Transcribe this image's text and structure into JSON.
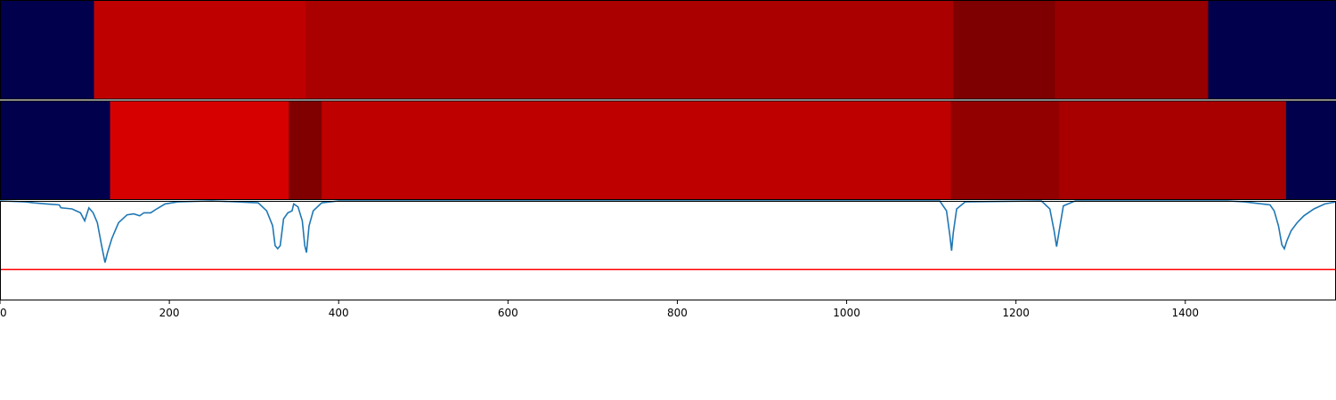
{
  "chart_data": {
    "type": "heatmap",
    "xlim": [
      0,
      1578
    ],
    "x_ticks": [
      0,
      200,
      400,
      600,
      800,
      1000,
      1200,
      1400
    ],
    "x_tick_labels": [
      "0",
      "200",
      "400",
      "600",
      "800",
      "1000",
      "1200",
      "1400"
    ],
    "rows": [
      {
        "segments": [
          {
            "start": 0,
            "end": 111,
            "color": "#00004c"
          },
          {
            "start": 111,
            "end": 361,
            "color": "#bf0000"
          },
          {
            "start": 361,
            "end": 1126,
            "color": "#aa0000"
          },
          {
            "start": 1126,
            "end": 1246,
            "color": "#7e0000"
          },
          {
            "start": 1246,
            "end": 1427,
            "color": "#960000"
          },
          {
            "start": 1427,
            "end": 1578,
            "color": "#00004c"
          }
        ]
      },
      {
        "segments": [
          {
            "start": 0,
            "end": 130,
            "color": "#00004c"
          },
          {
            "start": 130,
            "end": 341,
            "color": "#d70000"
          },
          {
            "start": 341,
            "end": 380,
            "color": "#800000"
          },
          {
            "start": 380,
            "end": 1123,
            "color": "#bf0000"
          },
          {
            "start": 1123,
            "end": 1251,
            "color": "#930000"
          },
          {
            "start": 1251,
            "end": 1519,
            "color": "#a80000"
          },
          {
            "start": 1519,
            "end": 1578,
            "color": "#00004c"
          }
        ]
      }
    ],
    "line": {
      "color": "#1f77b4",
      "ylim": [
        0,
        1
      ],
      "points": [
        [
          0,
          1.0
        ],
        [
          30,
          0.99
        ],
        [
          40,
          0.98
        ],
        [
          55,
          0.97
        ],
        [
          70,
          0.96
        ],
        [
          72,
          0.93
        ],
        [
          85,
          0.92
        ],
        [
          95,
          0.88
        ],
        [
          100,
          0.8
        ],
        [
          105,
          0.93
        ],
        [
          110,
          0.88
        ],
        [
          115,
          0.78
        ],
        [
          120,
          0.55
        ],
        [
          124,
          0.38
        ],
        [
          127,
          0.48
        ],
        [
          132,
          0.62
        ],
        [
          135,
          0.68
        ],
        [
          140,
          0.78
        ],
        [
          145,
          0.82
        ],
        [
          150,
          0.86
        ],
        [
          158,
          0.87
        ],
        [
          165,
          0.85
        ],
        [
          170,
          0.88
        ],
        [
          178,
          0.88
        ],
        [
          185,
          0.92
        ],
        [
          195,
          0.97
        ],
        [
          210,
          0.99
        ],
        [
          250,
          1.0
        ],
        [
          280,
          0.99
        ],
        [
          305,
          0.98
        ],
        [
          315,
          0.9
        ],
        [
          322,
          0.75
        ],
        [
          325,
          0.55
        ],
        [
          328,
          0.52
        ],
        [
          331,
          0.55
        ],
        [
          335,
          0.82
        ],
        [
          340,
          0.88
        ],
        [
          345,
          0.9
        ],
        [
          347,
          0.97
        ],
        [
          352,
          0.94
        ],
        [
          357,
          0.8
        ],
        [
          360,
          0.55
        ],
        [
          362,
          0.48
        ],
        [
          365,
          0.75
        ],
        [
          370,
          0.9
        ],
        [
          380,
          0.98
        ],
        [
          400,
          1.0
        ],
        [
          800,
          1.0
        ],
        [
          1110,
          1.0
        ],
        [
          1118,
          0.9
        ],
        [
          1122,
          0.65
        ],
        [
          1124,
          0.5
        ],
        [
          1126,
          0.68
        ],
        [
          1130,
          0.92
        ],
        [
          1140,
          0.99
        ],
        [
          1230,
          1.0
        ],
        [
          1240,
          0.92
        ],
        [
          1245,
          0.7
        ],
        [
          1248,
          0.54
        ],
        [
          1251,
          0.7
        ],
        [
          1256,
          0.95
        ],
        [
          1270,
          1.0
        ],
        [
          1450,
          1.0
        ],
        [
          1470,
          0.99
        ],
        [
          1500,
          0.96
        ],
        [
          1505,
          0.9
        ],
        [
          1510,
          0.75
        ],
        [
          1514,
          0.56
        ],
        [
          1517,
          0.52
        ],
        [
          1520,
          0.6
        ],
        [
          1525,
          0.7
        ],
        [
          1532,
          0.78
        ],
        [
          1540,
          0.85
        ],
        [
          1552,
          0.92
        ],
        [
          1565,
          0.97
        ],
        [
          1578,
          0.99
        ]
      ]
    },
    "threshold": {
      "value": 0.31,
      "color": "#ff0000"
    }
  }
}
